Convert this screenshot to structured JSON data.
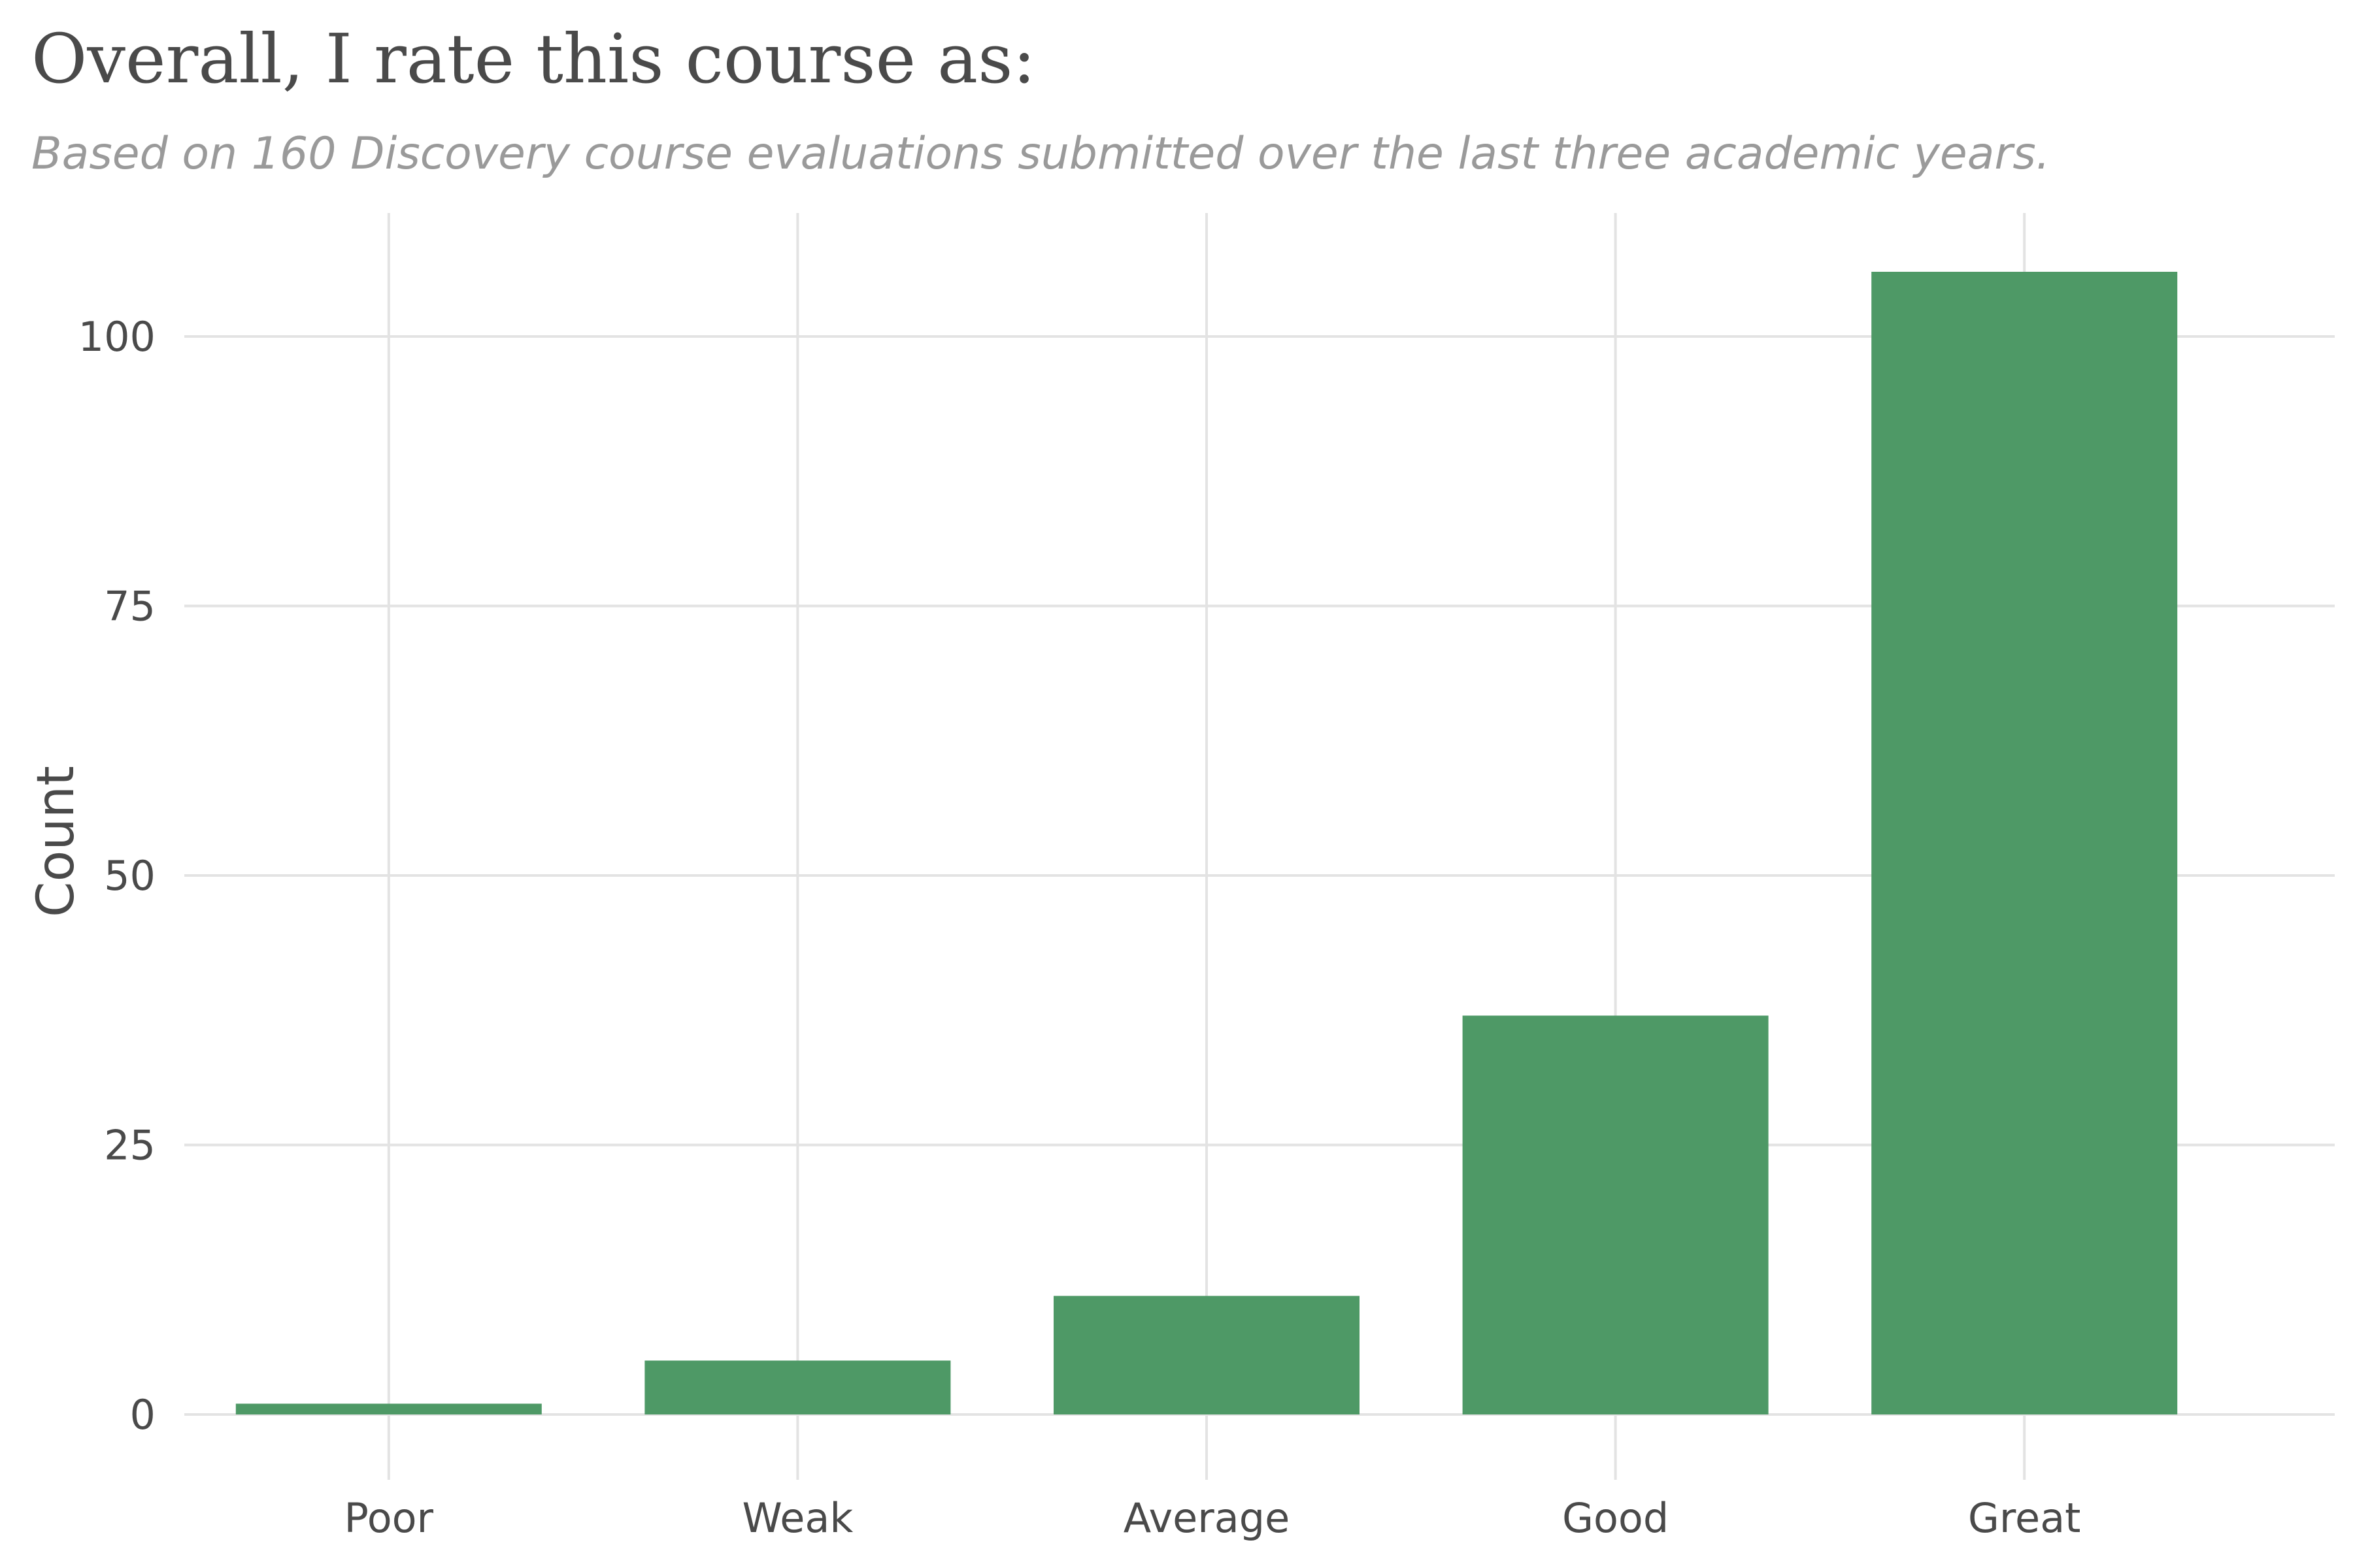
{
  "chart_data": {
    "type": "bar",
    "title": "Overall, I rate this course as:",
    "subtitle": "Based on 160 Discovery course evaluations submitted over the last three academic years.",
    "xlabel": "",
    "ylabel": "Count",
    "categories": [
      "Poor",
      "Weak",
      "Average",
      "Good",
      "Great"
    ],
    "values": [
      1,
      5,
      11,
      37,
      106
    ],
    "yticks": [
      0,
      25,
      50,
      75,
      100
    ],
    "ylim": [
      0,
      110
    ],
    "grid": true,
    "legend": "none",
    "colors": {
      "bar": "#4e9966",
      "grid": "#e3e3e3",
      "text": "#4a4a4a",
      "subtitle": "#9a9a9a"
    }
  }
}
